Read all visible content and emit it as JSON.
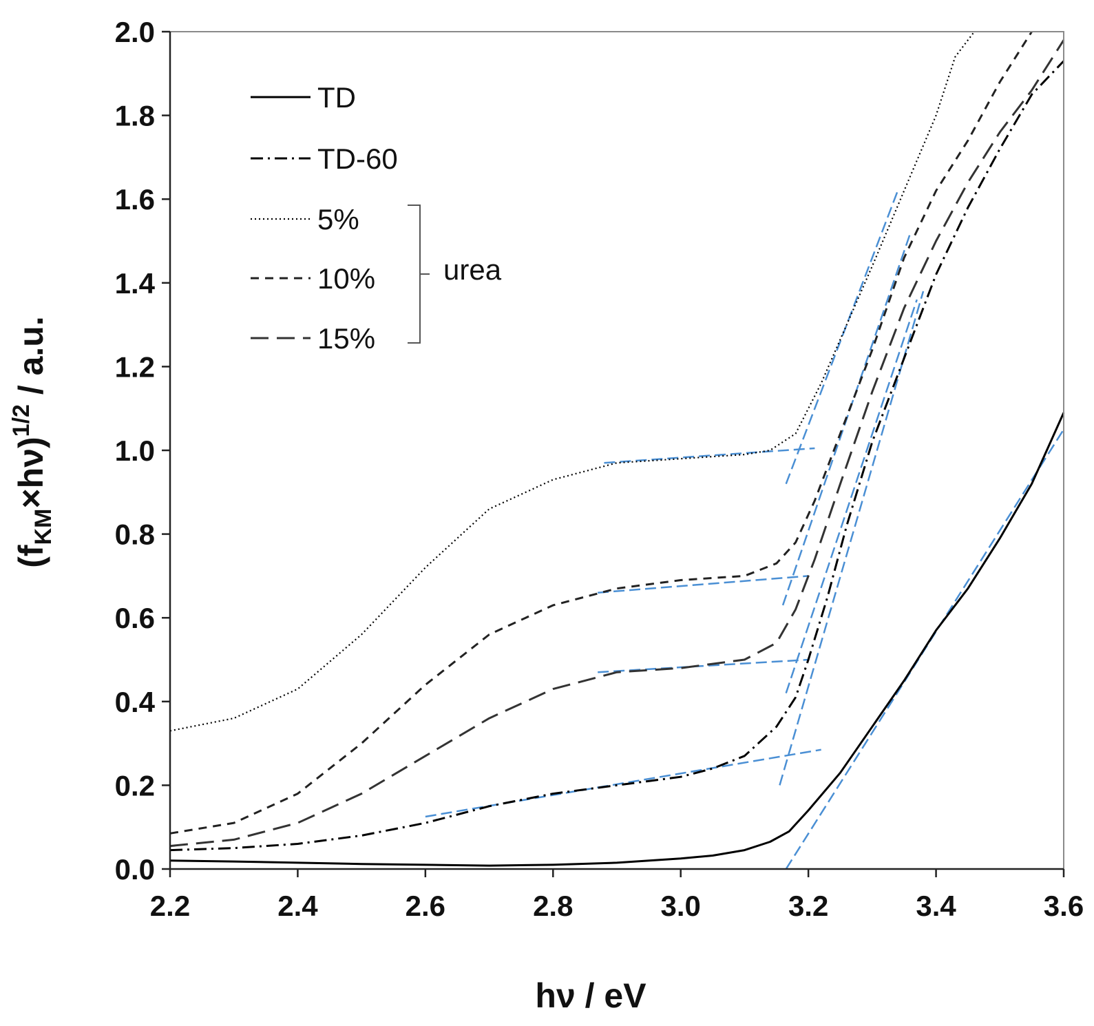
{
  "chart_data": {
    "type": "line",
    "title": "",
    "xlabel": "hν / eV",
    "ylabel_main": "(f",
    "ylabel_sub": "KM",
    "ylabel_mid": "×hν)",
    "ylabel_sup": "1/2",
    "ylabel_tail": " / a.u.",
    "xlim": [
      2.2,
      3.6
    ],
    "ylim": [
      0.0,
      2.0
    ],
    "xticks": [
      "2.2",
      "2.4",
      "2.6",
      "2.8",
      "3.0",
      "3.2",
      "3.4",
      "3.6"
    ],
    "yticks": [
      "0.0",
      "0.2",
      "0.4",
      "0.6",
      "0.8",
      "1.0",
      "1.2",
      "1.4",
      "1.6",
      "1.8",
      "2.0"
    ],
    "grid": false,
    "legend_position": "top-left",
    "legend_group_label": "urea",
    "series": [
      {
        "name": "TD",
        "style": "solid",
        "color": "#000000",
        "x": [
          2.2,
          2.3,
          2.4,
          2.5,
          2.6,
          2.7,
          2.8,
          2.9,
          3.0,
          3.05,
          3.1,
          3.14,
          3.17,
          3.2,
          3.25,
          3.3,
          3.35,
          3.4,
          3.45,
          3.5,
          3.55,
          3.6
        ],
        "y": [
          0.02,
          0.018,
          0.015,
          0.012,
          0.01,
          0.008,
          0.01,
          0.015,
          0.025,
          0.032,
          0.045,
          0.065,
          0.09,
          0.14,
          0.23,
          0.34,
          0.45,
          0.57,
          0.67,
          0.79,
          0.92,
          1.09
        ]
      },
      {
        "name": "TD-60",
        "style": "dashdot",
        "color": "#000000",
        "x": [
          2.2,
          2.3,
          2.4,
          2.5,
          2.6,
          2.7,
          2.8,
          2.9,
          3.0,
          3.05,
          3.1,
          3.15,
          3.18,
          3.2,
          3.23,
          3.26,
          3.3,
          3.35,
          3.4,
          3.45,
          3.5,
          3.55,
          3.6
        ],
        "y": [
          0.045,
          0.05,
          0.06,
          0.08,
          0.11,
          0.15,
          0.18,
          0.2,
          0.22,
          0.24,
          0.27,
          0.34,
          0.41,
          0.5,
          0.65,
          0.82,
          1.02,
          1.22,
          1.42,
          1.58,
          1.72,
          1.85,
          1.93
        ]
      },
      {
        "name": "5%",
        "style": "dotted",
        "color": "#000000",
        "x": [
          2.2,
          2.3,
          2.4,
          2.5,
          2.6,
          2.7,
          2.8,
          2.9,
          3.0,
          3.05,
          3.1,
          3.14,
          3.18,
          3.22,
          3.26,
          3.3,
          3.35,
          3.4,
          3.43,
          3.46
        ],
        "y": [
          0.33,
          0.36,
          0.43,
          0.56,
          0.72,
          0.86,
          0.93,
          0.97,
          0.98,
          0.985,
          0.99,
          1.0,
          1.04,
          1.16,
          1.3,
          1.44,
          1.62,
          1.8,
          1.94,
          2.0
        ]
      },
      {
        "name": "10%",
        "style": "dashed",
        "color": "#222222",
        "x": [
          2.2,
          2.3,
          2.4,
          2.5,
          2.6,
          2.7,
          2.8,
          2.9,
          3.0,
          3.05,
          3.1,
          3.15,
          3.18,
          3.21,
          3.25,
          3.3,
          3.35,
          3.4,
          3.45,
          3.5,
          3.55
        ],
        "y": [
          0.085,
          0.11,
          0.18,
          0.3,
          0.44,
          0.56,
          0.63,
          0.67,
          0.69,
          0.695,
          0.7,
          0.73,
          0.78,
          0.88,
          1.04,
          1.24,
          1.46,
          1.62,
          1.74,
          1.88,
          2.0
        ]
      },
      {
        "name": "15%",
        "style": "longdash",
        "color": "#333333",
        "x": [
          2.2,
          2.3,
          2.4,
          2.5,
          2.6,
          2.7,
          2.8,
          2.9,
          3.0,
          3.05,
          3.1,
          3.15,
          3.18,
          3.21,
          3.25,
          3.3,
          3.35,
          3.4,
          3.45,
          3.5,
          3.55,
          3.6
        ],
        "y": [
          0.055,
          0.07,
          0.11,
          0.18,
          0.27,
          0.36,
          0.43,
          0.47,
          0.48,
          0.49,
          0.5,
          0.54,
          0.62,
          0.74,
          0.92,
          1.14,
          1.34,
          1.5,
          1.64,
          1.76,
          1.86,
          1.98
        ]
      }
    ],
    "fit_lines": [
      {
        "x": [
          2.88,
          3.21
        ],
        "y": [
          0.97,
          1.005
        ]
      },
      {
        "x": [
          3.165,
          3.34
        ],
        "y": [
          0.92,
          1.62
        ]
      },
      {
        "x": [
          2.87,
          3.2
        ],
        "y": [
          0.66,
          0.7
        ]
      },
      {
        "x": [
          3.16,
          3.36
        ],
        "y": [
          0.63,
          1.52
        ]
      },
      {
        "x": [
          2.87,
          3.2
        ],
        "y": [
          0.47,
          0.5
        ]
      },
      {
        "x": [
          3.165,
          3.37
        ],
        "y": [
          0.42,
          1.36
        ]
      },
      {
        "x": [
          2.6,
          3.22
        ],
        "y": [
          0.125,
          0.285
        ]
      },
      {
        "x": [
          3.155,
          3.38
        ],
        "y": [
          0.2,
          1.38
        ]
      },
      {
        "x": [
          3.165,
          3.6
        ],
        "y": [
          0.0,
          1.05
        ]
      }
    ],
    "fit_color": "#4a8fd4"
  }
}
